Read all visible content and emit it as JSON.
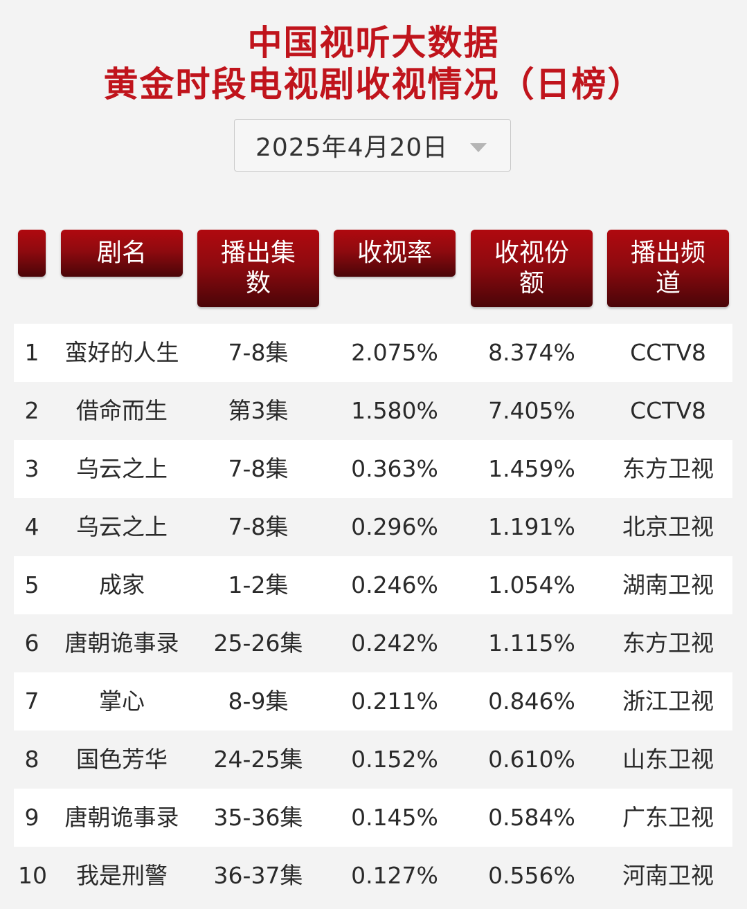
{
  "title_line1": "中国视听大数据",
  "title_line2": "黄金时段电视剧收视情况（日榜）",
  "date_selector": {
    "value": "2025年4月20日",
    "icon": "chevron-down-icon"
  },
  "colors": {
    "accent": "#c0141c",
    "header_bg": "#8f0a0f"
  },
  "columns": {
    "rank": "",
    "name": "剧名",
    "episodes_line1": "播出集",
    "episodes_line2": "数",
    "rating": "收视率",
    "share_line1": "收视份",
    "share_line2": "额",
    "channel_line1": "播出频",
    "channel_line2": "道"
  },
  "rows": [
    {
      "rank": "1",
      "name": "蛮好的人生",
      "episodes": "7-8集",
      "rating": "2.075%",
      "share": "8.374%",
      "channel": "CCTV8"
    },
    {
      "rank": "2",
      "name": "借命而生",
      "episodes": "第3集",
      "rating": "1.580%",
      "share": "7.405%",
      "channel": "CCTV8"
    },
    {
      "rank": "3",
      "name": "乌云之上",
      "episodes": "7-8集",
      "rating": "0.363%",
      "share": "1.459%",
      "channel": "东方卫视"
    },
    {
      "rank": "4",
      "name": "乌云之上",
      "episodes": "7-8集",
      "rating": "0.296%",
      "share": "1.191%",
      "channel": "北京卫视"
    },
    {
      "rank": "5",
      "name": "成家",
      "episodes": "1-2集",
      "rating": "0.246%",
      "share": "1.054%",
      "channel": "湖南卫视"
    },
    {
      "rank": "6",
      "name": "唐朝诡事录",
      "episodes": "25-26集",
      "rating": "0.242%",
      "share": "1.115%",
      "channel": "东方卫视"
    },
    {
      "rank": "7",
      "name": "掌心",
      "episodes": "8-9集",
      "rating": "0.211%",
      "share": "0.846%",
      "channel": "浙江卫视"
    },
    {
      "rank": "8",
      "name": "国色芳华",
      "episodes": "24-25集",
      "rating": "0.152%",
      "share": "0.610%",
      "channel": "山东卫视"
    },
    {
      "rank": "9",
      "name": "唐朝诡事录",
      "episodes": "35-36集",
      "rating": "0.145%",
      "share": "0.584%",
      "channel": "广东卫视"
    },
    {
      "rank": "10",
      "name": "我是刑警",
      "episodes": "36-37集",
      "rating": "0.127%",
      "share": "0.556%",
      "channel": "河南卫视"
    }
  ]
}
